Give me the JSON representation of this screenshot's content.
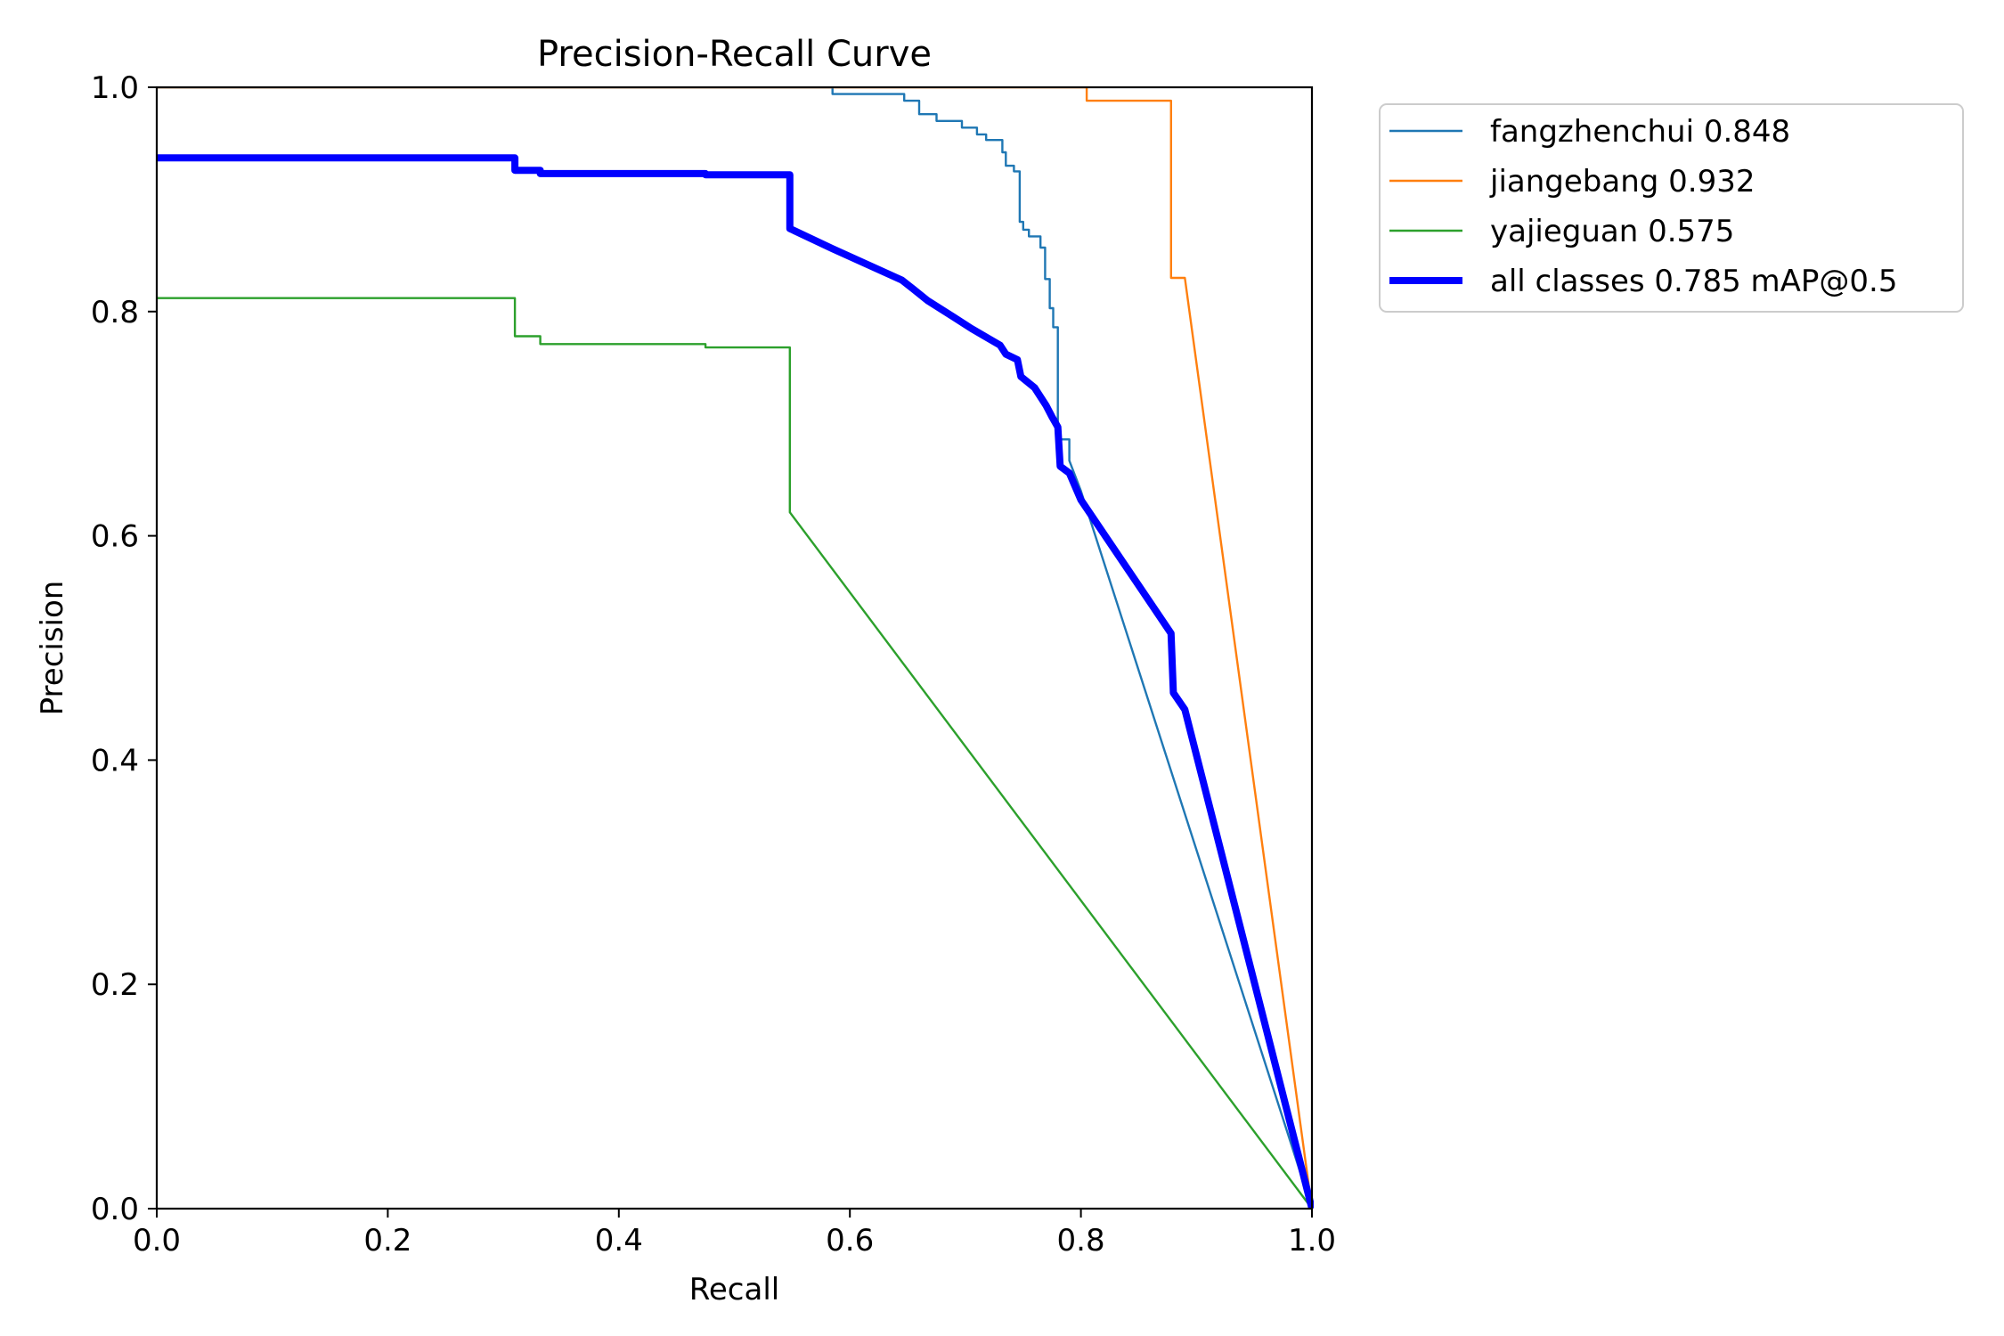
{
  "chart_data": {
    "type": "line",
    "title": "Precision-Recall Curve",
    "xlabel": "Recall",
    "ylabel": "Precision",
    "xlim": [
      0,
      1
    ],
    "ylim": [
      0,
      1
    ],
    "xticks": [
      "0.0",
      "0.2",
      "0.4",
      "0.6",
      "0.8",
      "1.0"
    ],
    "yticks": [
      "0.0",
      "0.2",
      "0.4",
      "0.6",
      "0.8",
      "1.0"
    ],
    "legend_position": "outside-top-right",
    "series": [
      {
        "name": "fangzhenchui 0.848",
        "color": "#1f77b4",
        "weight": "thin",
        "points": [
          [
            0,
            1.0
          ],
          [
            0.585,
            1.0
          ],
          [
            0.585,
            0.994
          ],
          [
            0.647,
            0.994
          ],
          [
            0.647,
            0.988
          ],
          [
            0.66,
            0.988
          ],
          [
            0.66,
            0.976
          ],
          [
            0.675,
            0.976
          ],
          [
            0.675,
            0.97
          ],
          [
            0.697,
            0.97
          ],
          [
            0.697,
            0.964
          ],
          [
            0.71,
            0.964
          ],
          [
            0.71,
            0.958
          ],
          [
            0.718,
            0.958
          ],
          [
            0.718,
            0.953
          ],
          [
            0.732,
            0.953
          ],
          [
            0.732,
            0.942
          ],
          [
            0.735,
            0.942
          ],
          [
            0.735,
            0.93
          ],
          [
            0.742,
            0.93
          ],
          [
            0.742,
            0.925
          ],
          [
            0.747,
            0.925
          ],
          [
            0.747,
            0.88
          ],
          [
            0.75,
            0.88
          ],
          [
            0.75,
            0.873
          ],
          [
            0.755,
            0.873
          ],
          [
            0.755,
            0.867
          ],
          [
            0.765,
            0.867
          ],
          [
            0.765,
            0.857
          ],
          [
            0.769,
            0.857
          ],
          [
            0.769,
            0.829
          ],
          [
            0.773,
            0.829
          ],
          [
            0.773,
            0.803
          ],
          [
            0.776,
            0.803
          ],
          [
            0.776,
            0.786
          ],
          [
            0.78,
            0.786
          ],
          [
            0.78,
            0.686
          ],
          [
            0.79,
            0.686
          ],
          [
            0.79,
            0.667
          ],
          [
            0.8,
            0.64
          ],
          [
            1.0,
            0.0
          ]
        ]
      },
      {
        "name": "jiangebang 0.932",
        "color": "#ff7f0e",
        "weight": "thin",
        "points": [
          [
            0,
            1.0
          ],
          [
            0.805,
            1.0
          ],
          [
            0.805,
            0.988
          ],
          [
            0.878,
            0.988
          ],
          [
            0.878,
            0.83
          ],
          [
            0.89,
            0.83
          ],
          [
            1.0,
            0.0
          ]
        ]
      },
      {
        "name": "yajieguan 0.575",
        "color": "#2ca02c",
        "weight": "thin",
        "points": [
          [
            0,
            0.812
          ],
          [
            0.31,
            0.812
          ],
          [
            0.31,
            0.778
          ],
          [
            0.332,
            0.778
          ],
          [
            0.332,
            0.771
          ],
          [
            0.475,
            0.771
          ],
          [
            0.475,
            0.768
          ],
          [
            0.548,
            0.768
          ],
          [
            0.548,
            0.621
          ],
          [
            1.0,
            0.0
          ]
        ]
      },
      {
        "name": "all classes 0.785 mAP@0.5",
        "color": "#0000ff",
        "weight": "thick",
        "points": [
          [
            0,
            0.937
          ],
          [
            0.31,
            0.937
          ],
          [
            0.31,
            0.926
          ],
          [
            0.332,
            0.926
          ],
          [
            0.332,
            0.923
          ],
          [
            0.475,
            0.923
          ],
          [
            0.475,
            0.922
          ],
          [
            0.548,
            0.922
          ],
          [
            0.548,
            0.874
          ],
          [
            0.585,
            0.856
          ],
          [
            0.645,
            0.828
          ],
          [
            0.655,
            0.82
          ],
          [
            0.667,
            0.81
          ],
          [
            0.69,
            0.795
          ],
          [
            0.705,
            0.785
          ],
          [
            0.73,
            0.77
          ],
          [
            0.735,
            0.762
          ],
          [
            0.745,
            0.757
          ],
          [
            0.748,
            0.742
          ],
          [
            0.76,
            0.732
          ],
          [
            0.77,
            0.716
          ],
          [
            0.775,
            0.706
          ],
          [
            0.78,
            0.697
          ],
          [
            0.782,
            0.662
          ],
          [
            0.79,
            0.656
          ],
          [
            0.8,
            0.632
          ],
          [
            0.878,
            0.513
          ],
          [
            0.88,
            0.46
          ],
          [
            0.89,
            0.445
          ],
          [
            1.0,
            0.0
          ]
        ]
      }
    ]
  }
}
